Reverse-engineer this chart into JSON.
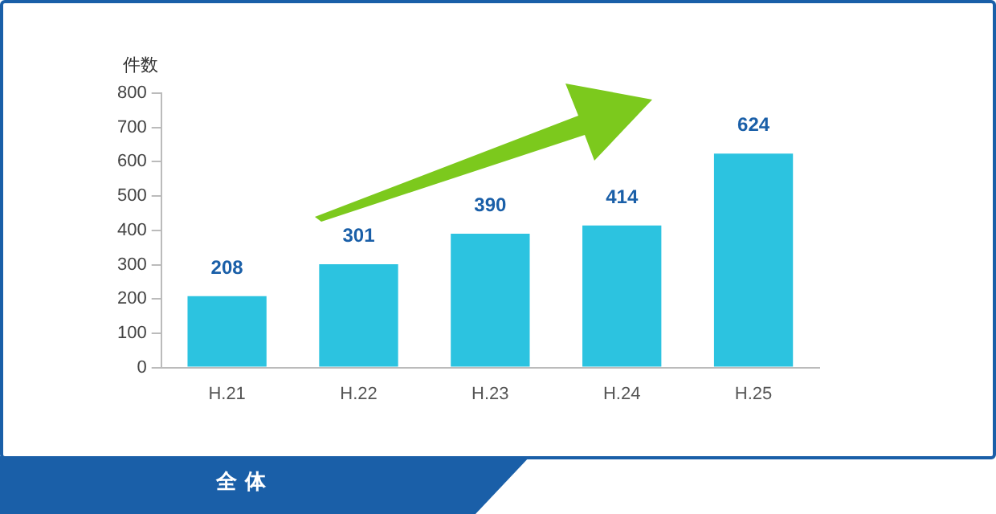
{
  "chart_data": {
    "type": "bar",
    "title": "全 体",
    "ylabel": "件数",
    "categories": [
      "H.21",
      "H.22",
      "H.23",
      "H.24",
      "H.25"
    ],
    "values": [
      208,
      301,
      390,
      414,
      624
    ],
    "color": "#2cc3e0",
    "ylim": [
      0,
      800
    ],
    "yticks": [
      0,
      100,
      200,
      300,
      400,
      500,
      600,
      700,
      800
    ],
    "grid": false,
    "legend": false,
    "data_labels": true
  }
}
